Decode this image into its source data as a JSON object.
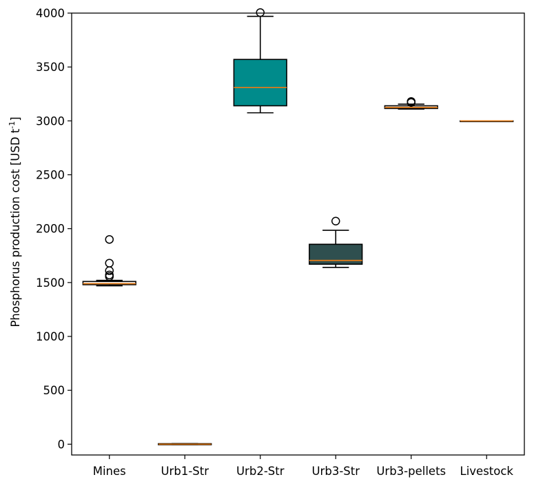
{
  "chart_data": {
    "type": "box",
    "categories": [
      "Mines",
      "Urb1-Str",
      "Urb2-Str",
      "Urb3-Str",
      "Urb3-pellets",
      "Livestock"
    ],
    "ylabel_main": "Phosphorus production cost [USD t",
    "ylabel_sup": "-1",
    "ylabel_close": "]",
    "ylim": [
      -100,
      4000
    ],
    "yticks": [
      0,
      500,
      1000,
      1500,
      2000,
      2500,
      3000,
      3500,
      4000
    ],
    "boxes": [
      {
        "category": "Mines",
        "whisker_low": 1470,
        "q1": 1480,
        "median": 1490,
        "q3": 1510,
        "whisker_high": 1520,
        "outliers": [
          1900,
          1680,
          1610,
          1570,
          1555
        ],
        "color": "#ffffff"
      },
      {
        "category": "Urb1-Str",
        "whisker_low": -5,
        "q1": -5,
        "median": 0,
        "q3": 5,
        "whisker_high": 5,
        "outliers": [],
        "color": "#ffffff"
      },
      {
        "category": "Urb2-Str",
        "whisker_low": 3075,
        "q1": 3140,
        "median": 3310,
        "q3": 3570,
        "whisker_high": 3970,
        "outliers": [
          4005
        ],
        "color": "#008b8b"
      },
      {
        "category": "Urb3-Str",
        "whisker_low": 1640,
        "q1": 1670,
        "median": 1705,
        "q3": 1855,
        "whisker_high": 1985,
        "outliers": [
          2070
        ],
        "color": "#2f4f4f"
      },
      {
        "category": "Urb3-pellets",
        "whisker_low": 3110,
        "q1": 3115,
        "median": 3125,
        "q3": 3140,
        "whisker_high": 3155,
        "outliers": [
          3180,
          3170
        ],
        "color": "#ffffff"
      },
      {
        "category": "Livestock",
        "whisker_low": 3000,
        "q1": 3000,
        "median": 3000,
        "q3": 3000,
        "whisker_high": 3000,
        "outliers": [],
        "color": "#ffffff"
      }
    ],
    "median_color": "#e07b1a",
    "grid": false,
    "legend": "none"
  }
}
